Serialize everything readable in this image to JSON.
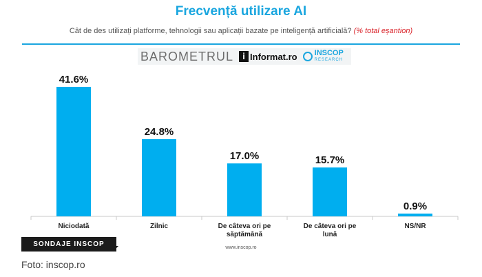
{
  "header": {
    "title": "Frecvență utilizare AI",
    "subtitle": "Cât de des utilizați platforme, tehnologii sau aplicații bazate pe inteligență artificială?",
    "subtitle_note": "(% total eșantion)"
  },
  "logos": {
    "barometrul": "BAROMETRUL",
    "informat": "Informat.ro",
    "informat_mark": "i",
    "inscop": "INSCOP",
    "inscop_sub": "RESEARCH"
  },
  "colors": {
    "bar": "#00aeef",
    "title": "#1aa6df",
    "note": "#d92027"
  },
  "chart_data": {
    "type": "bar",
    "categories": [
      "Niciodată",
      "Zilnic",
      "De câteva ori pe săptămână",
      "De câteva ori pe lună",
      "NS/NR"
    ],
    "values": [
      41.6,
      24.8,
      17.0,
      15.7,
      0.9
    ],
    "value_labels": [
      "41.6%",
      "24.8%",
      "17.0%",
      "15.7%",
      "0.9%"
    ],
    "xlabel": "",
    "ylabel": "",
    "ylim": [
      0,
      41.6
    ],
    "grid": false,
    "legend": "none"
  },
  "footer": {
    "website": "www.inscop.ro",
    "badge": "SONDAJE INSCOP",
    "credit": "Foto: inscop.ro"
  }
}
